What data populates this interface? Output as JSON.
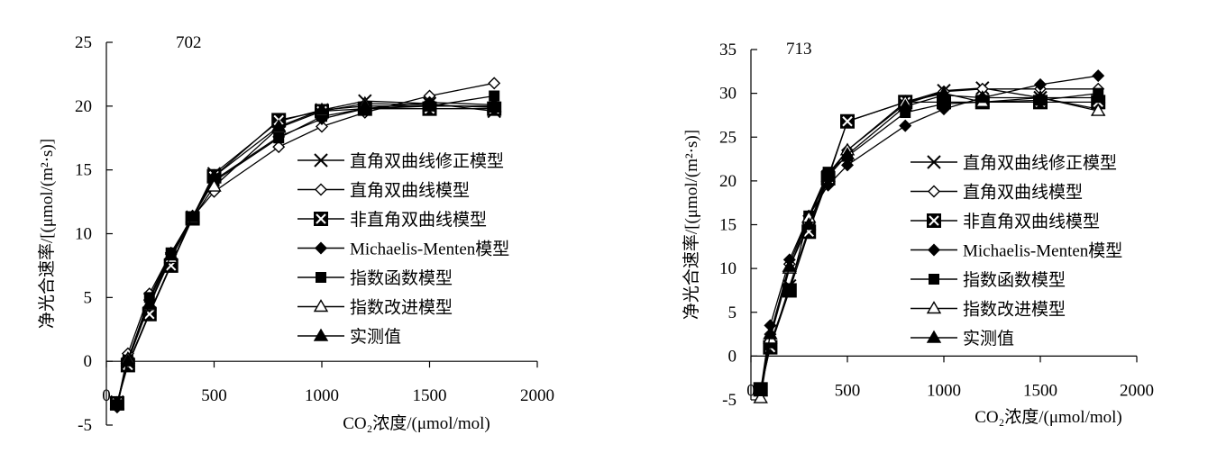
{
  "chart_data": [
    {
      "type": "line",
      "title": "702",
      "xlabel": "CO₂浓度/(μmol/mol)",
      "ylabel": "净光合速率/[(μmol/(m²·s)]",
      "xlim": [
        0,
        2000
      ],
      "ylim": [
        -5,
        25
      ],
      "xticks": [
        "0",
        "500",
        "1000",
        "1500",
        "2000"
      ],
      "yticks": [
        "-5",
        "0",
        "5",
        "10",
        "15",
        "20",
        "25"
      ],
      "x": [
        50,
        100,
        200,
        300,
        400,
        500,
        800,
        1000,
        1200,
        1500,
        1800
      ],
      "grid": false,
      "legend_position": "right",
      "series": [
        {
          "name": "直角双曲线修正模型",
          "marker": "x",
          "values": [
            -3.2,
            -0.2,
            3.8,
            7.6,
            11.3,
            14.7,
            18.8,
            19.7,
            20.4,
            20.2,
            19.6
          ]
        },
        {
          "name": "直角双曲线模型",
          "marker": "diamond-open",
          "values": [
            -3.5,
            0.6,
            5.3,
            8.5,
            11.3,
            13.3,
            16.8,
            18.4,
            19.5,
            20.8,
            21.8
          ]
        },
        {
          "name": "非直角双曲线模型",
          "marker": "square-x",
          "values": [
            -3.3,
            -0.3,
            3.7,
            7.5,
            11.2,
            14.5,
            18.9,
            19.6,
            19.8,
            19.8,
            19.8
          ]
        },
        {
          "name": "Michaelis-Menten模型",
          "marker": "diamond-filled",
          "values": [
            -3.6,
            0.2,
            4.8,
            8.4,
            11.4,
            14.2,
            17.6,
            19.0,
            19.8,
            20.3,
            20.1
          ]
        },
        {
          "name": "指数函数模型",
          "marker": "square-filled",
          "values": [
            -3.4,
            0.1,
            5.0,
            8.5,
            11.3,
            14.1,
            17.5,
            19.2,
            19.8,
            20.0,
            20.8
          ]
        },
        {
          "name": "指数改进模型",
          "marker": "triangle-open",
          "values": [
            -3.3,
            0.2,
            4.4,
            8.1,
            11.2,
            13.7,
            18.3,
            19.6,
            20.2,
            20.1,
            19.9
          ]
        },
        {
          "name": "实测值",
          "marker": "triangle-filled",
          "values": [
            -3.4,
            0.0,
            4.5,
            8.3,
            11.3,
            14.5,
            18.4,
            19.7,
            20.0,
            20.0,
            20.0
          ]
        }
      ]
    },
    {
      "type": "line",
      "title": "713",
      "xlabel": "CO₂浓度/(μmol/mol)",
      "ylabel": "净光合速率/[(μmol/(m²·s)]",
      "xlim": [
        0,
        2000
      ],
      "ylim": [
        -5,
        35
      ],
      "xticks": [
        "0",
        "500",
        "1000",
        "1500",
        "2000"
      ],
      "yticks": [
        "-5",
        "0",
        "5",
        "10",
        "15",
        "20",
        "25",
        "30",
        "35"
      ],
      "x": [
        50,
        100,
        200,
        300,
        400,
        500,
        800,
        1000,
        1200,
        1500,
        1800
      ],
      "grid": false,
      "legend_position": "right",
      "series": [
        {
          "name": "直角双曲线修正模型",
          "marker": "x",
          "values": [
            -3.8,
            1.0,
            8.0,
            14.5,
            20.5,
            26.8,
            29.0,
            30.3,
            30.6,
            29.5,
            28.2
          ]
        },
        {
          "name": "直角双曲线模型",
          "marker": "diamond-open",
          "values": [
            -4.0,
            2.5,
            10.5,
            16.0,
            20.8,
            23.5,
            28.8,
            30.2,
            30.5,
            30.5,
            30.5
          ]
        },
        {
          "name": "非直角双曲线模型",
          "marker": "square-x",
          "values": [
            -3.8,
            1.0,
            7.5,
            14.2,
            20.3,
            26.8,
            29.0,
            29.0,
            29.0,
            29.0,
            29.0
          ]
        },
        {
          "name": "Michaelis-Menten模型",
          "marker": "diamond-filled",
          "values": [
            -4.0,
            3.5,
            11.0,
            16.0,
            19.5,
            21.8,
            26.3,
            28.2,
            29.5,
            31.0,
            32.0
          ]
        },
        {
          "name": "指数函数模型",
          "marker": "square-filled",
          "values": [
            -3.8,
            1.5,
            7.5,
            16.0,
            21.0,
            22.8,
            27.8,
            28.8,
            29.0,
            29.2,
            30.0
          ]
        },
        {
          "name": "指数改进模型",
          "marker": "triangle-open",
          "values": [
            -4.8,
            2.0,
            10.0,
            15.8,
            20.5,
            23.5,
            29.0,
            30.0,
            29.0,
            29.5,
            28.0
          ]
        },
        {
          "name": "实测值",
          "marker": "triangle-filled",
          "values": [
            -4.0,
            2.5,
            10.2,
            15.0,
            20.5,
            23.0,
            28.5,
            29.8,
            29.5,
            29.5,
            29.5
          ]
        }
      ]
    }
  ]
}
